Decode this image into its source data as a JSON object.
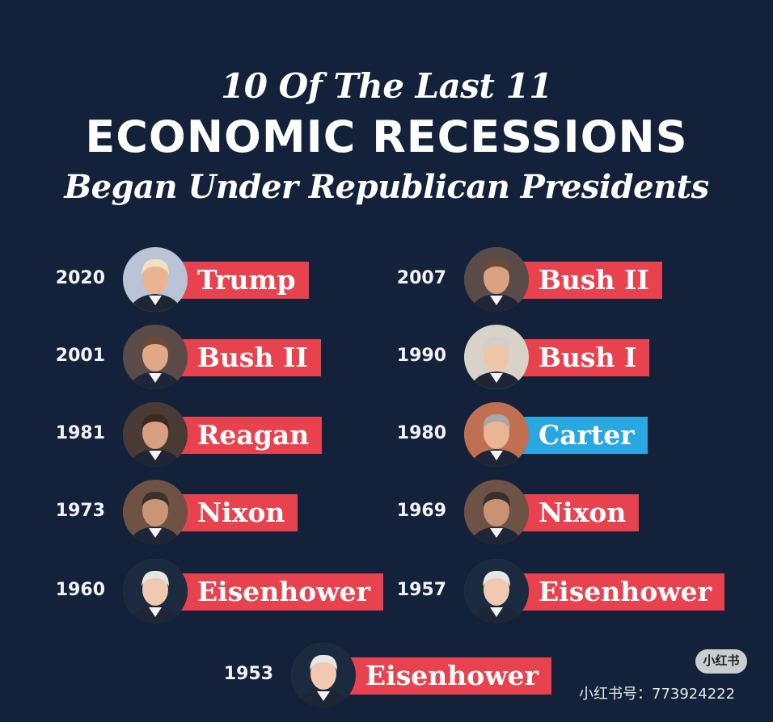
{
  "title": {
    "line1": "10 Of The Last 11",
    "line2": "ECONOMIC RECESSIONS",
    "line3": "Began Under Republican Presidents"
  },
  "colors": {
    "background": "#13223a",
    "republican": "#e8424f",
    "democrat": "#2aa6e0"
  },
  "recessions": [
    {
      "year": "2020",
      "president": "Trump",
      "party_color": "republican"
    },
    {
      "year": "2007",
      "president": "Bush II",
      "party_color": "republican"
    },
    {
      "year": "2001",
      "president": "Bush II",
      "party_color": "republican"
    },
    {
      "year": "1990",
      "president": "Bush I",
      "party_color": "republican"
    },
    {
      "year": "1981",
      "president": "Reagan",
      "party_color": "republican"
    },
    {
      "year": "1980",
      "president": "Carter",
      "party_color": "democrat"
    },
    {
      "year": "1973",
      "president": "Nixon",
      "party_color": "republican"
    },
    {
      "year": "1969",
      "president": "Nixon",
      "party_color": "republican"
    },
    {
      "year": "1960",
      "president": "Eisenhower",
      "party_color": "republican"
    },
    {
      "year": "1957",
      "president": "Eisenhower",
      "party_color": "republican"
    },
    {
      "year": "1953",
      "president": "Eisenhower",
      "party_color": "republican"
    }
  ],
  "watermark": {
    "badge": "小红书",
    "id_text": "小红书号：773924222"
  }
}
